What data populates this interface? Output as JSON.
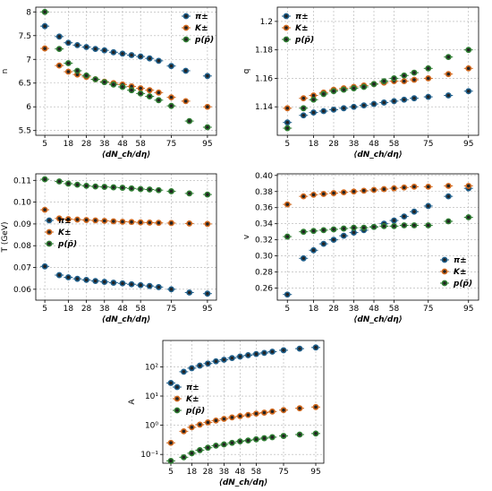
{
  "colors": {
    "pi": "#1f5f8b",
    "K": "#d2691e",
    "p": "#2e7d32",
    "grid": "#b0b0b0"
  },
  "chart_data": [
    {
      "id": "n",
      "type": "scatter",
      "ylabel": "n",
      "xlabel": "⟨dN_ch/dη⟩",
      "xticks": [
        5,
        18,
        28,
        38,
        48,
        58,
        75,
        95
      ],
      "yticks": [
        5.5,
        6.0,
        6.5,
        7.0,
        7.5,
        8.0
      ],
      "ylim": [
        5.4,
        8.1
      ],
      "xlim": [
        0,
        100
      ],
      "log": false,
      "legend": "top-right",
      "series": [
        {
          "name": "π±",
          "key": "pi",
          "x": [
            5,
            13,
            18,
            23,
            28,
            33,
            38,
            43,
            48,
            53,
            58,
            63,
            68,
            75,
            83,
            95
          ],
          "y": [
            7.7,
            7.48,
            7.35,
            7.3,
            7.26,
            7.22,
            7.19,
            7.15,
            7.12,
            7.09,
            7.06,
            7.02,
            6.97,
            6.86,
            6.76,
            6.65
          ]
        },
        {
          "name": "K±",
          "key": "K",
          "x": [
            5,
            13,
            18,
            23,
            28,
            33,
            38,
            43,
            48,
            53,
            58,
            63,
            68,
            75,
            83,
            95
          ],
          "y": [
            7.23,
            6.87,
            6.74,
            6.68,
            6.63,
            6.58,
            6.53,
            6.5,
            6.47,
            6.43,
            6.39,
            6.35,
            6.3,
            6.2,
            6.12,
            6.0
          ]
        },
        {
          "name": "p(p̄)",
          "key": "p",
          "x": [
            5,
            13,
            18,
            23,
            28,
            33,
            38,
            43,
            48,
            53,
            58,
            63,
            68,
            75,
            85,
            95
          ],
          "y": [
            8.0,
            7.22,
            6.92,
            6.76,
            6.66,
            6.58,
            6.52,
            6.47,
            6.42,
            6.35,
            6.28,
            6.22,
            6.14,
            6.02,
            5.7,
            5.57
          ]
        }
      ]
    },
    {
      "id": "q",
      "type": "scatter",
      "ylabel": "q",
      "xlabel": "⟨dN_ch/dη⟩",
      "xticks": [
        5,
        18,
        28,
        38,
        48,
        58,
        75,
        95
      ],
      "yticks": [
        1.14,
        1.16,
        1.18,
        1.2
      ],
      "ylim": [
        1.12,
        1.21
      ],
      "xlim": [
        0,
        100
      ],
      "log": false,
      "legend": "top-left",
      "series": [
        {
          "name": "π±",
          "key": "pi",
          "x": [
            5,
            13,
            18,
            23,
            28,
            33,
            38,
            43,
            48,
            53,
            58,
            63,
            68,
            75,
            85,
            95
          ],
          "y": [
            1.129,
            1.134,
            1.136,
            1.137,
            1.138,
            1.139,
            1.14,
            1.141,
            1.142,
            1.143,
            1.144,
            1.145,
            1.146,
            1.147,
            1.148,
            1.151
          ]
        },
        {
          "name": "K±",
          "key": "K",
          "x": [
            5,
            13,
            18,
            23,
            28,
            33,
            38,
            43,
            48,
            53,
            58,
            63,
            68,
            75,
            85,
            95
          ],
          "y": [
            1.139,
            1.146,
            1.148,
            1.15,
            1.152,
            1.153,
            1.154,
            1.155,
            1.156,
            1.157,
            1.158,
            1.158,
            1.159,
            1.16,
            1.163,
            1.167
          ]
        },
        {
          "name": "p(p̄)",
          "key": "p",
          "x": [
            5,
            13,
            18,
            23,
            28,
            33,
            38,
            43,
            48,
            53,
            58,
            63,
            68,
            75,
            85,
            95
          ],
          "y": [
            1.125,
            1.139,
            1.145,
            1.149,
            1.151,
            1.152,
            1.153,
            1.154,
            1.156,
            1.158,
            1.16,
            1.162,
            1.164,
            1.167,
            1.175,
            1.18
          ]
        }
      ]
    },
    {
      "id": "T",
      "type": "scatter",
      "ylabel": "T (GeV)",
      "xlabel": "⟨dN_ch/dη⟩",
      "xticks": [
        5,
        18,
        28,
        38,
        48,
        58,
        75,
        95
      ],
      "yticks": [
        0.06,
        0.07,
        0.08,
        0.09,
        0.1,
        0.11
      ],
      "ylim": [
        0.055,
        0.113
      ],
      "xlim": [
        0,
        100
      ],
      "log": false,
      "legend": "center-left",
      "series": [
        {
          "name": "π±",
          "key": "pi",
          "x": [
            5,
            13,
            18,
            23,
            28,
            33,
            38,
            43,
            48,
            53,
            58,
            63,
            68,
            75,
            85,
            95
          ],
          "y": [
            0.0705,
            0.0665,
            0.0655,
            0.0648,
            0.0643,
            0.0638,
            0.0634,
            0.063,
            0.0627,
            0.0623,
            0.0619,
            0.0615,
            0.061,
            0.06,
            0.0585,
            0.058
          ]
        },
        {
          "name": "K±",
          "key": "K",
          "x": [
            5,
            13,
            18,
            23,
            28,
            33,
            38,
            43,
            48,
            53,
            58,
            63,
            68,
            75,
            85,
            95
          ],
          "y": [
            0.0965,
            0.0925,
            0.0922,
            0.092,
            0.0918,
            0.0916,
            0.0914,
            0.0912,
            0.091,
            0.0909,
            0.0907,
            0.0906,
            0.0905,
            0.0904,
            0.0902,
            0.09
          ]
        },
        {
          "name": "p(p̄)",
          "key": "p",
          "x": [
            5,
            13,
            18,
            23,
            28,
            33,
            38,
            43,
            48,
            53,
            58,
            63,
            68,
            75,
            85,
            95
          ],
          "y": [
            0.1105,
            0.1095,
            0.1085,
            0.108,
            0.1075,
            0.1072,
            0.107,
            0.1068,
            0.1066,
            0.1063,
            0.106,
            0.1058,
            0.1055,
            0.105,
            0.104,
            0.1035
          ]
        }
      ]
    },
    {
      "id": "v",
      "type": "scatter",
      "ylabel": "v",
      "xlabel": "⟨dN_ch/dη⟩",
      "xticks": [
        5,
        18,
        28,
        38,
        48,
        58,
        75,
        95
      ],
      "yticks": [
        0.26,
        0.28,
        0.3,
        0.32,
        0.34,
        0.36,
        0.38,
        0.4
      ],
      "ylim": [
        0.245,
        0.402
      ],
      "xlim": [
        0,
        100
      ],
      "log": false,
      "legend": "bottom-right",
      "series": [
        {
          "name": "π±",
          "key": "pi",
          "x": [
            5,
            13,
            18,
            23,
            28,
            33,
            38,
            43,
            48,
            53,
            58,
            63,
            68,
            75,
            85,
            95
          ],
          "y": [
            0.252,
            0.297,
            0.307,
            0.315,
            0.32,
            0.325,
            0.329,
            0.332,
            0.336,
            0.34,
            0.344,
            0.349,
            0.355,
            0.362,
            0.374,
            0.384
          ]
        },
        {
          "name": "K±",
          "key": "K",
          "x": [
            5,
            13,
            18,
            23,
            28,
            33,
            38,
            43,
            48,
            53,
            58,
            63,
            68,
            75,
            85,
            95
          ],
          "y": [
            0.364,
            0.374,
            0.376,
            0.377,
            0.378,
            0.379,
            0.38,
            0.381,
            0.382,
            0.383,
            0.384,
            0.385,
            0.386,
            0.386,
            0.387,
            0.387
          ]
        },
        {
          "name": "p(p̄)",
          "key": "p",
          "x": [
            5,
            13,
            18,
            23,
            28,
            33,
            38,
            43,
            48,
            53,
            58,
            63,
            68,
            75,
            85,
            95
          ],
          "y": [
            0.324,
            0.33,
            0.331,
            0.332,
            0.333,
            0.334,
            0.335,
            0.335,
            0.336,
            0.337,
            0.337,
            0.338,
            0.338,
            0.338,
            0.343,
            0.348
          ]
        }
      ]
    },
    {
      "id": "A",
      "type": "scatter",
      "ylabel": "A",
      "xlabel": "⟨dN_ch/dη⟩",
      "xticks": [
        5,
        18,
        28,
        38,
        48,
        58,
        75,
        95
      ],
      "yticks": [
        0.1,
        1,
        10,
        100
      ],
      "ytick_labels": [
        "10⁻¹",
        "10⁰",
        "10¹",
        "10²"
      ],
      "ylim": [
        0.05,
        800
      ],
      "xlim": [
        0,
        100
      ],
      "log": true,
      "legend": "center-left",
      "series": [
        {
          "name": "π±",
          "key": "pi",
          "x": [
            5,
            13,
            18,
            23,
            28,
            33,
            38,
            43,
            48,
            53,
            58,
            63,
            68,
            75,
            85,
            95
          ],
          "y": [
            28,
            68,
            90,
            110,
            130,
            155,
            175,
            200,
            225,
            250,
            275,
            300,
            330,
            370,
            420,
            460
          ]
        },
        {
          "name": "K±",
          "key": "K",
          "x": [
            5,
            13,
            18,
            23,
            28,
            33,
            38,
            43,
            48,
            53,
            58,
            63,
            68,
            75,
            85,
            95
          ],
          "y": [
            0.25,
            0.62,
            0.85,
            1.05,
            1.25,
            1.45,
            1.65,
            1.85,
            2.05,
            2.25,
            2.5,
            2.7,
            2.95,
            3.3,
            3.8,
            4.2
          ]
        },
        {
          "name": "p(p̄)",
          "key": "p",
          "x": [
            5,
            13,
            18,
            23,
            28,
            33,
            38,
            43,
            48,
            53,
            58,
            63,
            68,
            75,
            85,
            95
          ],
          "y": [
            0.06,
            0.08,
            0.11,
            0.14,
            0.17,
            0.2,
            0.22,
            0.25,
            0.28,
            0.3,
            0.33,
            0.36,
            0.39,
            0.43,
            0.48,
            0.52
          ]
        }
      ]
    }
  ]
}
